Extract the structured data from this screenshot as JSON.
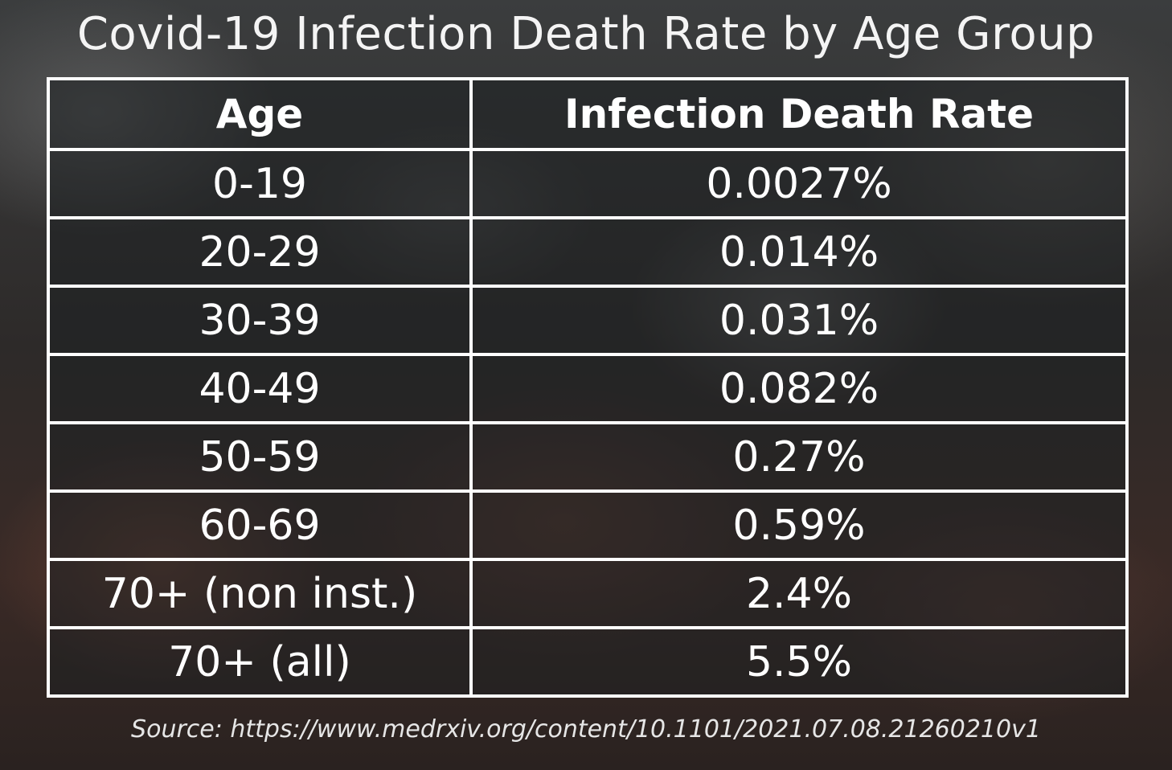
{
  "title": "Covid-19 Infection Death Rate by Age Group",
  "chart_data": {
    "type": "table",
    "title": "Covid-19 Infection Death Rate by Age Group",
    "columns": [
      "Age",
      "Infection Death Rate"
    ],
    "rows": [
      [
        "0-19",
        "0.0027%"
      ],
      [
        "20-29",
        "0.014%"
      ],
      [
        "30-39",
        "0.031%"
      ],
      [
        "40-49",
        "0.082%"
      ],
      [
        "50-59",
        "0.27%"
      ],
      [
        "60-69",
        "0.59%"
      ],
      [
        "70+ (non inst.)",
        "2.4%"
      ],
      [
        "70+ (all)",
        "5.5%"
      ]
    ]
  },
  "source": "Source: https://www.medrxiv.org/content/10.1101/2021.07.08.21260210v1"
}
